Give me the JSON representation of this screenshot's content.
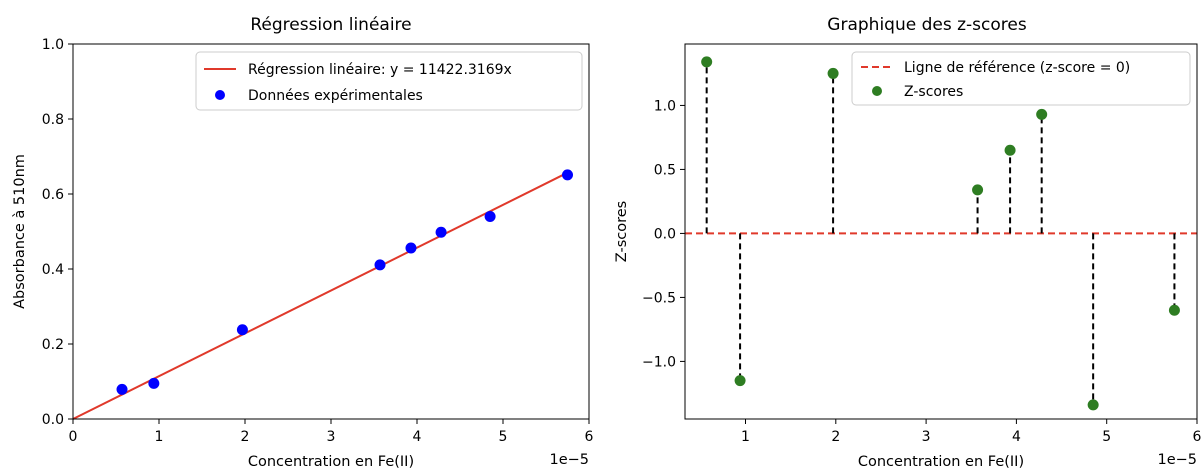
{
  "chart_data": [
    {
      "type": "scatter",
      "title": "Régression linéaire",
      "xlabel": "Concentration en Fe(II)",
      "ylabel": "Absorbance à 510nm",
      "x_offset_label": "1e−5",
      "xlim": [
        0,
        6
      ],
      "ylim": [
        0,
        1.0
      ],
      "xticks": [
        "0",
        "1",
        "2",
        "3",
        "4",
        "5",
        "6"
      ],
      "yticks": [
        "0.0",
        "0.2",
        "0.4",
        "0.6",
        "0.8",
        "1.0"
      ],
      "grid": false,
      "legend_position": "top-right",
      "series": [
        {
          "name": "Régression linéaire: y = 11422.3169x",
          "kind": "line",
          "color": "#e0392b",
          "x": [
            0,
            5.75
          ],
          "y": [
            0,
            0.6568
          ]
        },
        {
          "name": "Données expérimentales",
          "kind": "scatter",
          "color": "#0000ff",
          "x": [
            0.57,
            0.94,
            1.97,
            3.57,
            3.93,
            4.28,
            4.85,
            5.75
          ],
          "y": [
            0.079,
            0.095,
            0.238,
            0.411,
            0.456,
            0.498,
            0.54,
            0.651
          ]
        }
      ]
    },
    {
      "type": "scatter",
      "title": "Graphique des z-scores",
      "xlabel": "Concentration en Fe(II)",
      "ylabel": "Z-scores",
      "x_offset_label": "1e−5",
      "xlim": [
        0.33,
        6.0
      ],
      "ylim": [
        -1.45,
        1.48
      ],
      "xticks": [
        "1",
        "2",
        "3",
        "4",
        "5",
        "6"
      ],
      "yticks": [
        "−1.0",
        "−0.5",
        "0.0",
        "0.5",
        "1.0"
      ],
      "grid": false,
      "legend_position": "top-right",
      "series": [
        {
          "name": "Ligne de référence (z-score = 0)",
          "kind": "hline",
          "color": "#e0392b",
          "y": 0
        },
        {
          "name": "Z-scores",
          "kind": "scatter",
          "color": "#2e7d22",
          "x": [
            0.57,
            0.94,
            1.97,
            3.57,
            3.93,
            4.28,
            4.85,
            5.75
          ],
          "y": [
            1.34,
            -1.15,
            1.25,
            0.34,
            0.65,
            0.93,
            -1.34,
            -0.6
          ]
        }
      ]
    }
  ]
}
